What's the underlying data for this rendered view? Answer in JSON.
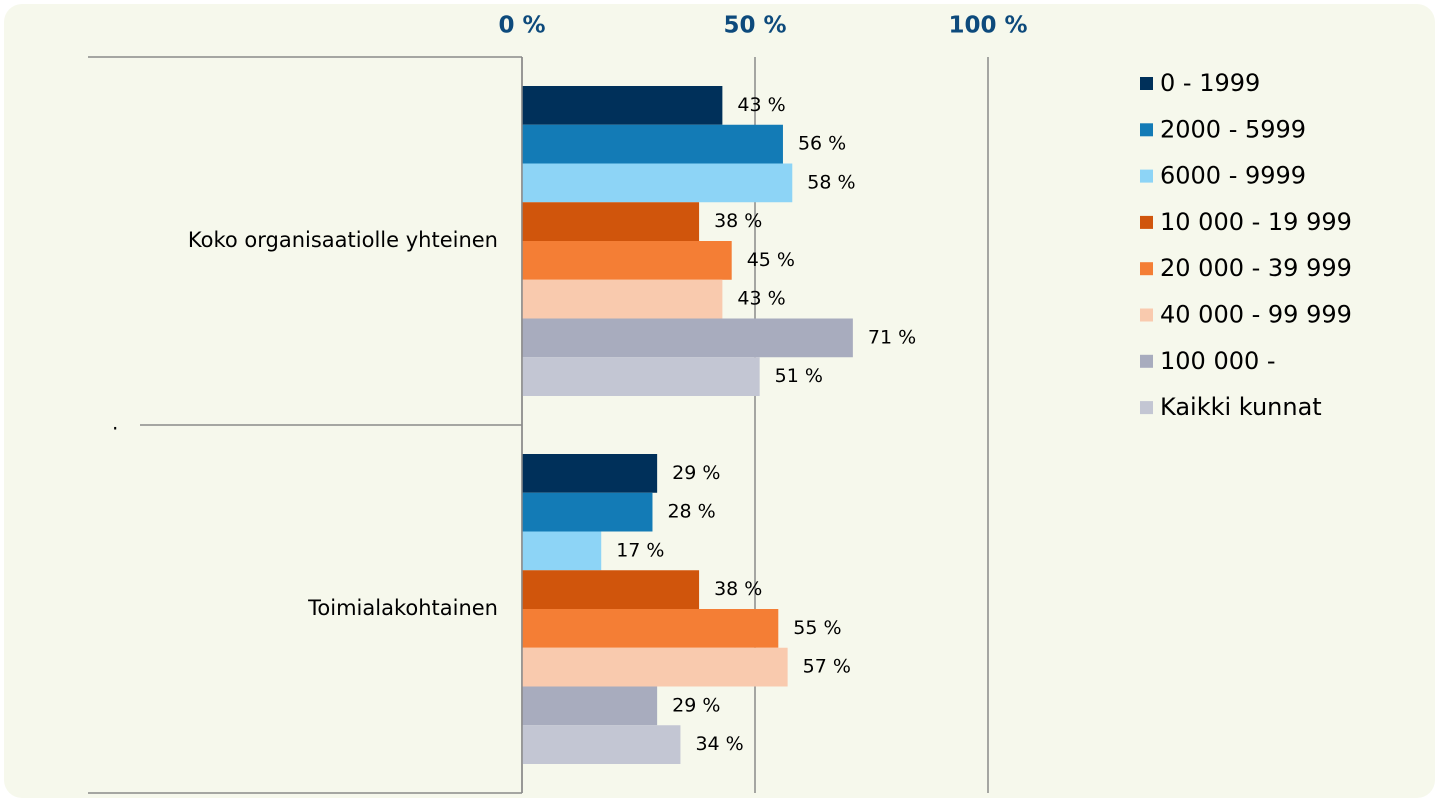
{
  "chart_data": {
    "type": "hbar",
    "categories": [
      "Koko organisaatiolle yhteinen",
      "Toimialakohtainen"
    ],
    "annotation": ".",
    "series": [
      {
        "name": "0 - 1999",
        "color": "#00305a",
        "values": [
          43,
          29
        ],
        "value_labels": [
          "43 %",
          "29 %"
        ]
      },
      {
        "name": "2000 - 5999",
        "color": "#137bb6",
        "values": [
          56,
          28
        ],
        "value_labels": [
          "56 %",
          "28 %"
        ]
      },
      {
        "name": "6000 - 9999",
        "color": "#8dd4f6",
        "values": [
          58,
          17
        ],
        "value_labels": [
          "58 %",
          "17 %"
        ]
      },
      {
        "name": "10 000 - 19 999",
        "color": "#d0550c",
        "values": [
          38,
          38
        ],
        "value_labels": [
          "38 %",
          "38 %"
        ]
      },
      {
        "name": "20 000 - 39 999",
        "color": "#f47e35",
        "values": [
          45,
          55
        ],
        "value_labels": [
          "45 %",
          "55 %"
        ]
      },
      {
        "name": "40 000 - 99 999",
        "color": "#f9caae",
        "values": [
          43,
          57
        ],
        "value_labels": [
          "43 %",
          "57 %"
        ]
      },
      {
        "name": "100 000 -",
        "color": "#a8acbe",
        "values": [
          71,
          29
        ],
        "value_labels": [
          "71 %",
          "29 %"
        ]
      },
      {
        "name": "Kaikki kunnat",
        "color": "#c3c6d3",
        "values": [
          51,
          34
        ],
        "value_labels": [
          "51 %",
          "34 %"
        ]
      }
    ],
    "xlim": [
      0,
      100
    ],
    "xticks": [
      {
        "value": 0,
        "label": "0 %"
      },
      {
        "value": 50,
        "label": "50 %"
      },
      {
        "value": 100,
        "label": "100 %"
      }
    ],
    "grid": true,
    "legend": "right"
  }
}
